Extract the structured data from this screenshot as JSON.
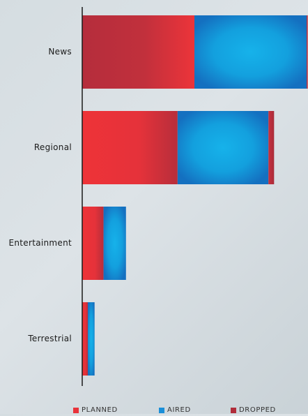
{
  "chart_data": {
    "type": "bar",
    "orientation": "horizontal",
    "stacked": true,
    "categories": [
      "News",
      "Regional",
      "Entertainment",
      "Terrestrial"
    ],
    "series": [
      {
        "name": "PLANNED",
        "values": [
          50,
          42.5,
          9.5,
          2.5
        ],
        "color": "#e8323a"
      },
      {
        "name": "AIRED",
        "values": [
          50,
          40.5,
          10,
          3
        ],
        "color": "#1a8fd8"
      },
      {
        "name": "DROPPED",
        "values": [
          0.5,
          2.5,
          0,
          0
        ],
        "color": "#b02d3a"
      }
    ],
    "xlim": [
      0,
      100
    ],
    "grid": false,
    "legend_position": "bottom"
  },
  "legend": {
    "items": [
      {
        "label": "PLANNED",
        "color": "#e8323a"
      },
      {
        "label": "AIRED",
        "color": "#1a8fd8"
      },
      {
        "label": "DROPPED",
        "color": "#b02d3a"
      }
    ]
  }
}
